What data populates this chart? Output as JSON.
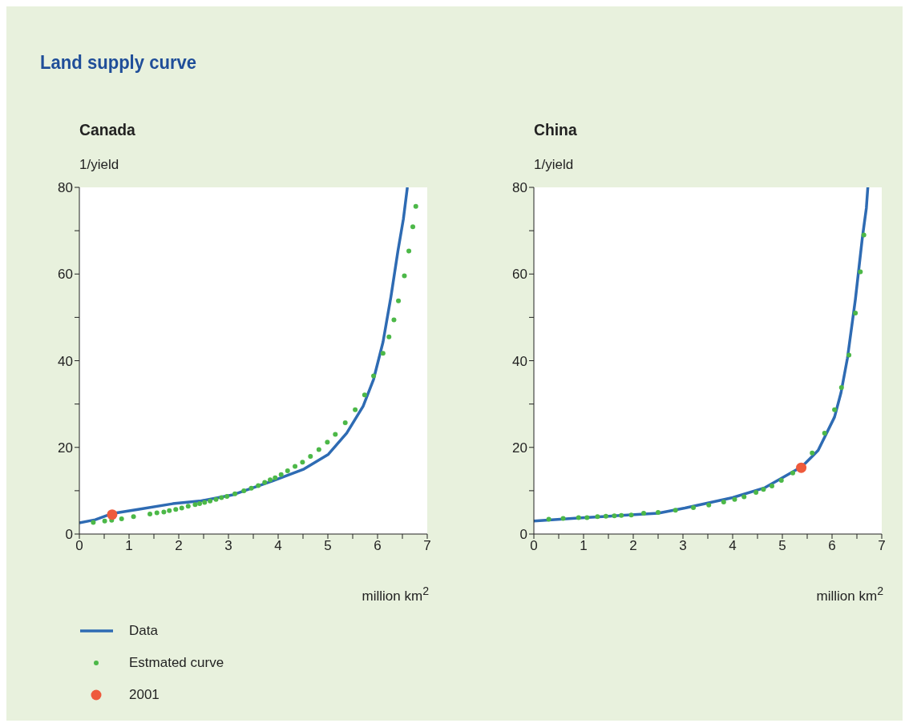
{
  "chart_data": [
    {
      "type": "line",
      "title": "Land supply curve",
      "subtitle": "Canada",
      "ylabel": "1/yield",
      "xlabel": "million km$^{2}$",
      "xlim": [
        0,
        7
      ],
      "ylim": [
        0,
        80
      ],
      "xticks": [
        0,
        {
          "value": 0.5,
          "label": null
        },
        1,
        {
          "value": 1.5,
          "label": null
        },
        2,
        {
          "value": 2.5,
          "label": null
        },
        3,
        {
          "value": 3.5,
          "label": null
        },
        4,
        {
          "value": 4.5,
          "label": null
        },
        5,
        {
          "value": 5.5,
          "label": null
        },
        6,
        {
          "value": 6.5,
          "label": null
        },
        7
      ],
      "yticks": [
        0,
        {
          "value": 10,
          "label": null
        },
        20,
        {
          "value": 30,
          "label": null
        },
        40,
        {
          "value": 50,
          "label": null
        },
        60,
        {
          "value": 70,
          "label": null
        },
        80
      ],
      "legend": "bottom",
      "grid": false,
      "series": [
        {
          "name": "Data",
          "color": "#2e6bb3",
          "line_style": "solid",
          "marker": "none",
          "x": [
            0,
            0.32,
            0.65,
            1.18,
            1.88,
            2.42,
            3.07,
            3.88,
            4.52,
            5.01,
            5.38,
            5.71,
            5.92,
            6.11,
            6.27,
            6.41,
            6.52,
            6.6
          ],
          "values": [
            2.6,
            3.3,
            4.7,
            5.7,
            7.0,
            7.6,
            9.0,
            12.2,
            15.0,
            18.4,
            23.3,
            29.5,
            35.7,
            44.3,
            54.8,
            65.3,
            72.7,
            80
          ]
        },
        {
          "name": "Estmated curve",
          "type": "scatter",
          "color": "#4cb848",
          "marker": "circle",
          "x": [
            0.28,
            0.51,
            0.65,
            0.85,
            1.09,
            1.42,
            1.56,
            1.7,
            1.81,
            1.94,
            2.06,
            2.19,
            2.33,
            2.42,
            2.52,
            2.63,
            2.75,
            2.86,
            2.97,
            3.13,
            3.31,
            3.46,
            3.6,
            3.73,
            3.84,
            3.94,
            4.06,
            4.19,
            4.34,
            4.49,
            4.65,
            4.82,
            4.99,
            5.15,
            5.35,
            5.55,
            5.74,
            5.92,
            6.11,
            6.23,
            6.33,
            6.42,
            6.54,
            6.63,
            6.71,
            6.77
          ],
          "values": [
            2.7,
            3.0,
            3.2,
            3.5,
            4.0,
            4.6,
            4.9,
            5.1,
            5.4,
            5.7,
            6.0,
            6.4,
            6.8,
            7.0,
            7.3,
            7.6,
            8.0,
            8.4,
            8.7,
            9.3,
            10.0,
            10.6,
            11.2,
            11.9,
            12.5,
            13.0,
            13.7,
            14.6,
            15.6,
            16.6,
            17.9,
            19.5,
            21.2,
            23.0,
            25.7,
            28.7,
            32.1,
            36.5,
            41.7,
            45.5,
            49.4,
            53.8,
            59.6,
            65.3,
            70.9,
            75.6
          ]
        },
        {
          "name": "2001",
          "type": "scatter",
          "color": "#ee5a3c",
          "marker": "circle",
          "x": [
            0.66
          ],
          "values": [
            4.5
          ]
        }
      ]
    },
    {
      "type": "line",
      "title": "China",
      "ylabel": "1/yield",
      "xlabel": "million km$^{2}$",
      "xlim": [
        0,
        7
      ],
      "ylim": [
        0,
        80
      ],
      "xticks": [
        0,
        {
          "value": 0.5,
          "label": null
        },
        1,
        {
          "value": 1.5,
          "label": null
        },
        2,
        {
          "value": 2.5,
          "label": null
        },
        3,
        {
          "value": 3.5,
          "label": null
        },
        4,
        {
          "value": 4.5,
          "label": null
        },
        5,
        {
          "value": 5.5,
          "label": null
        },
        6,
        {
          "value": 6.5,
          "label": null
        },
        7
      ],
      "yticks": [
        0,
        {
          "value": 10,
          "label": null
        },
        20,
        {
          "value": 30,
          "label": null
        },
        40,
        {
          "value": 50,
          "label": null
        },
        60,
        {
          "value": 70,
          "label": null
        },
        80
      ],
      "grid": false,
      "series": [
        {
          "color": "#2e6bb3",
          "line_style": "solid",
          "marker": "none",
          "x": [
            0,
            0.89,
            2.5,
            3.04,
            4.0,
            4.65,
            5.02,
            5.4,
            5.72,
            6.05,
            6.18,
            6.31,
            6.47,
            6.61,
            6.69,
            6.72
          ],
          "values": [
            3.0,
            3.7,
            4.8,
            6.0,
            8.4,
            10.7,
            13.1,
            15.6,
            19.3,
            27.0,
            32.6,
            40.6,
            54.2,
            68.4,
            75.2,
            80
          ]
        },
        {
          "type": "scatter",
          "color": "#4cb848",
          "marker": "circle",
          "x": [
            0.3,
            0.59,
            0.9,
            1.07,
            1.28,
            1.45,
            1.62,
            1.76,
            1.96,
            2.21,
            2.5,
            2.85,
            3.21,
            3.52,
            3.82,
            4.04,
            4.23,
            4.47,
            4.62,
            4.79,
            4.98,
            5.21,
            5.6,
            5.85,
            6.05,
            6.19,
            6.34,
            6.47,
            6.57,
            6.64
          ],
          "values": [
            3.4,
            3.6,
            3.8,
            3.8,
            4.0,
            4.1,
            4.2,
            4.3,
            4.4,
            4.8,
            5.0,
            5.5,
            6.1,
            6.7,
            7.4,
            8.0,
            8.6,
            9.6,
            10.3,
            11.1,
            12.4,
            14.1,
            18.7,
            23.3,
            28.7,
            33.8,
            41.3,
            51.0,
            60.5,
            69.0
          ]
        },
        {
          "type": "scatter",
          "color": "#ee5a3c",
          "marker": "circle",
          "x": [
            5.38
          ],
          "values": [
            15.3
          ]
        }
      ]
    }
  ]
}
